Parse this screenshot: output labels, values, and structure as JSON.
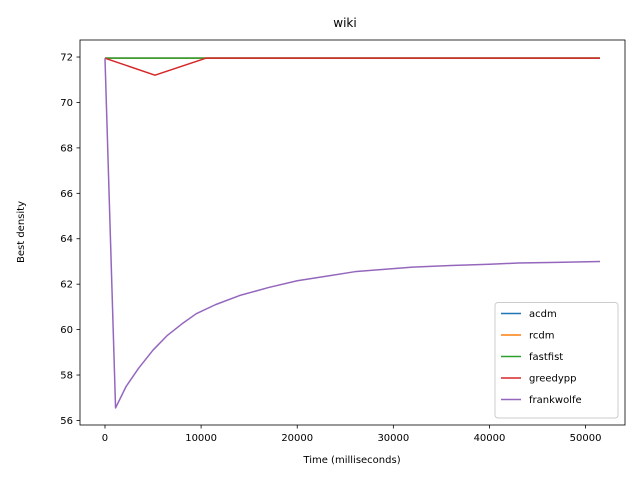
{
  "chart_data": {
    "type": "line",
    "title": "wiki",
    "xlabel": "Time (milliseconds)",
    "ylabel": "Best density",
    "xlim": [
      -2600,
      54100
    ],
    "ylim": [
      55.8,
      72.75
    ],
    "xticks": [
      0,
      10000,
      20000,
      30000,
      40000,
      50000
    ],
    "yticks": [
      56,
      58,
      60,
      62,
      64,
      66,
      68,
      70,
      72
    ],
    "grid": false,
    "legend_position": "lower-right",
    "series": [
      {
        "name": "acdm",
        "color": "#1f77b4",
        "x": [
          0,
          51500
        ],
        "y": [
          71.95,
          71.95
        ]
      },
      {
        "name": "rcdm",
        "color": "#ff7f0e",
        "x": [
          0,
          51500
        ],
        "y": [
          71.95,
          71.95
        ]
      },
      {
        "name": "fastfist",
        "color": "#2ca02c",
        "x": [
          0,
          51500
        ],
        "y": [
          71.95,
          71.95
        ]
      },
      {
        "name": "greedypp",
        "color": "#d62728",
        "x": [
          0,
          5200,
          10500,
          51500
        ],
        "y": [
          71.95,
          71.2,
          71.95,
          71.95
        ]
      },
      {
        "name": "frankwolfe",
        "color": "#9467bd",
        "x": [
          0,
          1100,
          2200,
          3500,
          5000,
          6500,
          8000,
          9500,
          11500,
          14000,
          17000,
          20000,
          23000,
          26000,
          29000,
          32000,
          36000,
          40000,
          43000,
          47000,
          51500
        ],
        "y": [
          71.95,
          56.55,
          57.5,
          58.3,
          59.1,
          59.75,
          60.25,
          60.7,
          61.1,
          61.5,
          61.85,
          62.15,
          62.35,
          62.55,
          62.65,
          62.75,
          62.82,
          62.88,
          62.93,
          62.96,
          63.0
        ]
      }
    ]
  }
}
